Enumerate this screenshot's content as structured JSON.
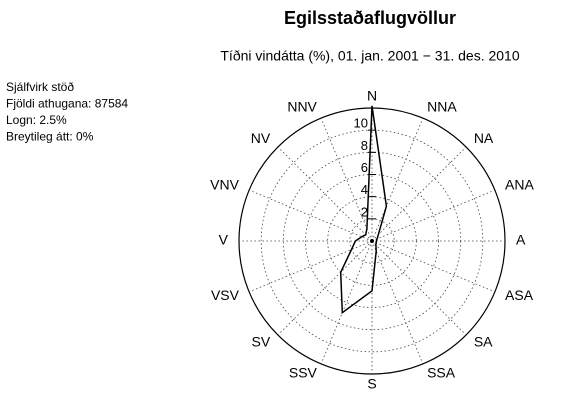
{
  "chart_data": {
    "type": "polar-line",
    "title": "Egilsstaðaflugvöllur",
    "subtitle": "Tíðni vindátta (%), 01. jan. 2001 − 31. des. 2010",
    "info": [
      "Sjálfvirk stöð",
      "Fjöldi athugana: 87584",
      "Logn: 2.5%",
      "Breytileg átt: 0%"
    ],
    "categories": [
      "N",
      "NNA",
      "NA",
      "ANA",
      "A",
      "ASA",
      "SA",
      "SSA",
      "S",
      "SSV",
      "SV",
      "VSV",
      "V",
      "VNV",
      "NV",
      "NNV"
    ],
    "series": [
      {
        "name": "Tíðni",
        "color": "#000000",
        "values": [
          12.2,
          3.4,
          0.8,
          0.5,
          0.4,
          0.4,
          0.5,
          1.0,
          4.5,
          7.0,
          4.0,
          2.0,
          1.5,
          1.0,
          0.8,
          1.2
        ]
      }
    ],
    "rlim": [
      0,
      12
    ],
    "rticks": [
      2,
      4,
      6,
      8,
      10
    ],
    "grid": true
  }
}
